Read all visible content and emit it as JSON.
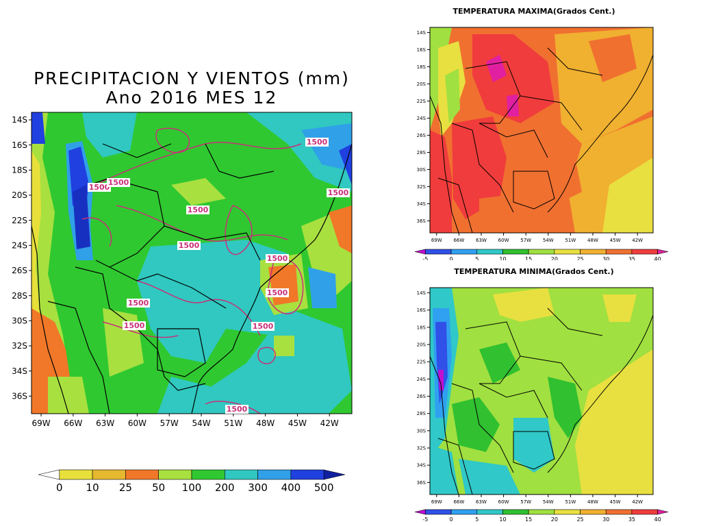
{
  "precip_panel": {
    "title_line1": "PRECIPITACION Y VIENTOS (mm)",
    "title_line2": "Ano 2016 MES 12",
    "lat_labels": [
      "14S",
      "16S",
      "18S",
      "20S",
      "22S",
      "24S",
      "26S",
      "28S",
      "30S",
      "32S",
      "34S",
      "36S"
    ],
    "lon_labels": [
      "69W",
      "66W",
      "63W",
      "60W",
      "57W",
      "54W",
      "51W",
      "48W",
      "45W",
      "42W"
    ],
    "contour_labels": [
      "1500",
      "1500",
      "1500",
      "1500",
      "1500",
      "1500",
      "1500",
      "1500",
      "1500",
      "1500",
      "1500",
      "1500"
    ],
    "colorbar_labels": [
      "0",
      "10",
      "25",
      "50",
      "100",
      "200",
      "300",
      "400",
      "500"
    ],
    "colorbar_colors": [
      "#e8e03a",
      "#e6b830",
      "#f07828",
      "#a8e040",
      "#30c830",
      "#30c8c0",
      "#30a0e8",
      "#2040e0"
    ],
    "colorbar_end_low": "#ffffff",
    "colorbar_end_high": "#1020a0"
  },
  "tmax_panel": {
    "title": "TEMPERATURA MAXIMA(Grados Cent.)",
    "lat_labels": [
      "14S",
      "16S",
      "18S",
      "20S",
      "22S",
      "24S",
      "26S",
      "28S",
      "30S",
      "32S",
      "34S",
      "36S"
    ],
    "lon_labels": [
      "69W",
      "66W",
      "63W",
      "60W",
      "57W",
      "54W",
      "51W",
      "48W",
      "45W",
      "42W"
    ],
    "colorbar_labels": [
      "-5",
      "0",
      "5",
      "10",
      "15",
      "20",
      "25",
      "30",
      "35",
      "40"
    ],
    "colorbar_colors": [
      "#3050e8",
      "#30a0f0",
      "#30c8c8",
      "#30c030",
      "#a0e040",
      "#e8e040",
      "#f0b030",
      "#f07030",
      "#f03c3c"
    ],
    "colorbar_end_low": "#c010d0",
    "colorbar_end_high": "#e020a0"
  },
  "tmin_panel": {
    "title": "TEMPERATURA MINIMA(Grados Cent.)",
    "lat_labels": [
      "14S",
      "16S",
      "18S",
      "20S",
      "22S",
      "24S",
      "26S",
      "28S",
      "30S",
      "32S",
      "34S",
      "36S"
    ],
    "lon_labels": [
      "69W",
      "66W",
      "63W",
      "60W",
      "57W",
      "54W",
      "51W",
      "48W",
      "45W",
      "42W"
    ],
    "colorbar_labels": [
      "-5",
      "0",
      "5",
      "10",
      "15",
      "20",
      "25",
      "30",
      "35",
      "40"
    ],
    "colorbar_colors": [
      "#3050e8",
      "#30a0f0",
      "#30c8c8",
      "#30c030",
      "#a0e040",
      "#e8e040",
      "#f0b030",
      "#f07030",
      "#f03c3c"
    ],
    "colorbar_end_low": "#c010d0",
    "colorbar_end_high": "#e020a0"
  }
}
